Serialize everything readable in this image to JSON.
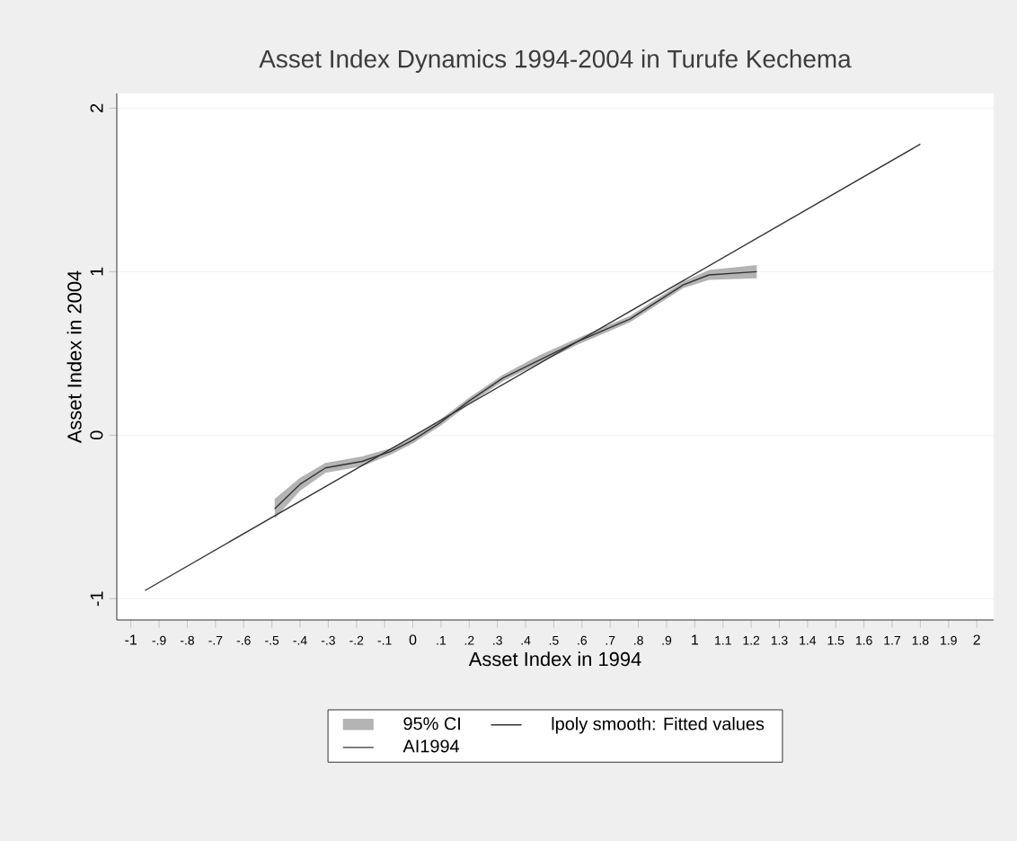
{
  "chart_data": {
    "type": "line",
    "title": "Asset Index Dynamics 1994-2004 in Turufe Kechema",
    "xlabel": "Asset Index in 1994",
    "ylabel": "Asset Index in 2004",
    "xlim": [
      -1.05,
      2.06
    ],
    "ylim": [
      -1.13,
      2.09
    ],
    "xticks": [
      -1,
      {
        "value": -0.9,
        "label": "-.9"
      },
      {
        "value": -0.8,
        "label": "-.8"
      },
      {
        "value": -0.7,
        "label": "-.7"
      },
      {
        "value": -0.6,
        "label": "-.6"
      },
      {
        "value": -0.5,
        "label": "-.5"
      },
      {
        "value": -0.4,
        "label": "-.4"
      },
      {
        "value": -0.3,
        "label": "-.3"
      },
      {
        "value": -0.2,
        "label": "-.2"
      },
      {
        "value": -0.1,
        "label": "-.1"
      },
      0,
      {
        "value": 0.1,
        "label": ".1"
      },
      {
        "value": 0.2,
        "label": ".2"
      },
      {
        "value": 0.3,
        "label": ".3"
      },
      {
        "value": 0.4,
        "label": ".4"
      },
      {
        "value": 0.5,
        "label": ".5"
      },
      {
        "value": 0.6,
        "label": ".6"
      },
      {
        "value": 0.7,
        "label": ".7"
      },
      {
        "value": 0.8,
        "label": ".8"
      },
      {
        "value": 0.9,
        "label": ".9"
      },
      1,
      1.1,
      1.2,
      1.3,
      1.4,
      1.5,
      1.6,
      1.7,
      1.8,
      1.9,
      2
    ],
    "yticks": [
      -1,
      0,
      1,
      2
    ],
    "grid": "y",
    "legend": "bottom",
    "annotations": [
      "95% CI"
    ],
    "series": [
      {
        "name": "lpoly smooth: Fitted values",
        "type": "line",
        "color": "#333333",
        "x": [
          -0.49,
          -0.4,
          -0.31,
          -0.18,
          -0.08,
          0,
          0.1,
          0.2,
          0.32,
          0.45,
          0.58,
          0.77,
          0.96,
          1.05,
          1.22
        ],
        "values": [
          -0.45,
          -0.3,
          -0.2,
          -0.16,
          -0.1,
          -0.03,
          0.08,
          0.21,
          0.35,
          0.46,
          0.57,
          0.71,
          0.92,
          0.98,
          1.0
        ],
        "lower": [
          -0.51,
          -0.34,
          -0.23,
          -0.19,
          -0.12,
          -0.05,
          0.06,
          0.19,
          0.33,
          0.44,
          0.55,
          0.69,
          0.9,
          0.95,
          0.96
        ],
        "upper": [
          -0.39,
          -0.26,
          -0.17,
          -0.13,
          -0.08,
          -0.01,
          0.1,
          0.23,
          0.37,
          0.49,
          0.59,
          0.73,
          0.94,
          1.01,
          1.04
        ]
      },
      {
        "name": "AI1994",
        "type": "line",
        "color": "#333333",
        "x": [
          -0.95,
          1.8
        ],
        "values": [
          -0.95,
          1.78
        ]
      }
    ]
  }
}
